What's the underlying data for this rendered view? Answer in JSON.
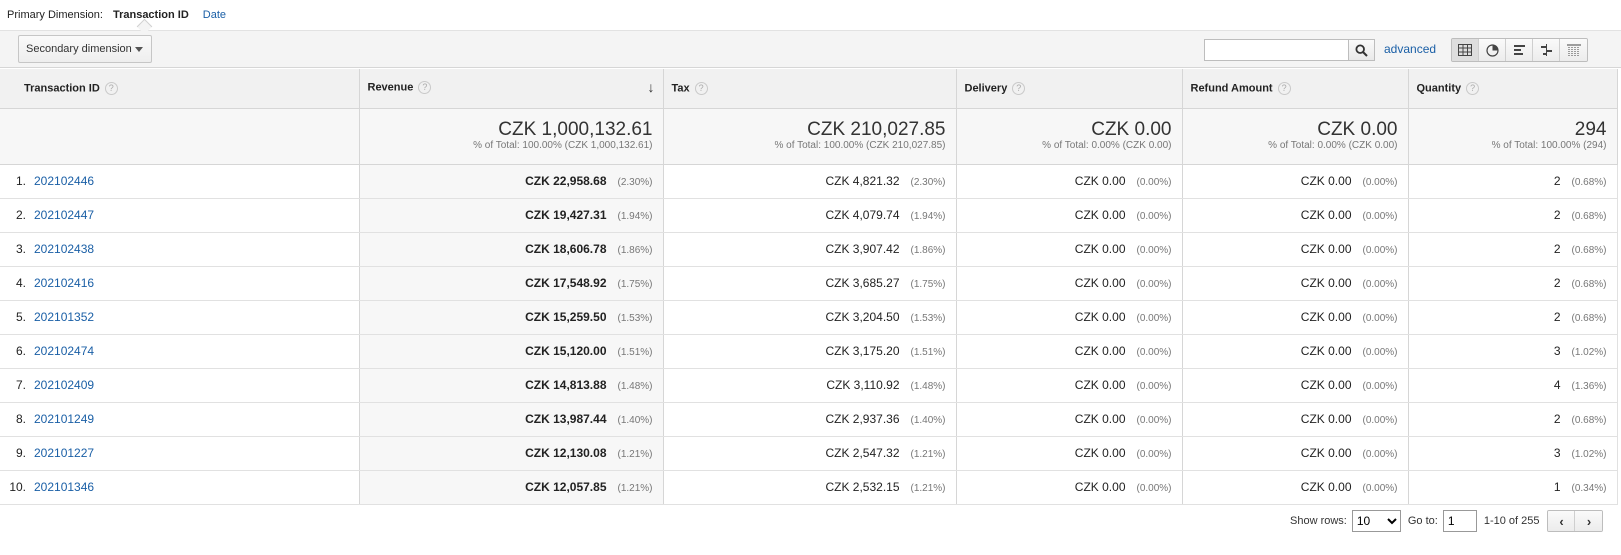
{
  "primary_dimension": {
    "label": "Primary Dimension:",
    "active": "Transaction ID",
    "other": "Date"
  },
  "toolbar": {
    "secondary_dimension_label": "Secondary dimension",
    "search_value": "",
    "advanced_label": "advanced",
    "view_icons": [
      "table-view-icon",
      "pie-view-icon",
      "bar-view-icon",
      "comparison-view-icon",
      "pivot-view-icon"
    ]
  },
  "table": {
    "headers": {
      "dimension": "Transaction ID",
      "revenue": "Revenue",
      "tax": "Tax",
      "delivery": "Delivery",
      "refund": "Refund Amount",
      "quantity": "Quantity"
    },
    "help_glyph": "?",
    "sort_glyph": "↓",
    "totals": {
      "revenue": {
        "value": "CZK 1,000,132.61",
        "sub": "% of Total: 100.00% (CZK 1,000,132.61)"
      },
      "tax": {
        "value": "CZK 210,027.85",
        "sub": "% of Total: 100.00% (CZK 210,027.85)"
      },
      "delivery": {
        "value": "CZK 0.00",
        "sub": "% of Total: 0.00% (CZK 0.00)"
      },
      "refund": {
        "value": "CZK 0.00",
        "sub": "% of Total: 0.00% (CZK 0.00)"
      },
      "quantity": {
        "value": "294",
        "sub": "% of Total: 100.00% (294)"
      }
    },
    "rows": [
      {
        "idx": "1.",
        "id": "202102446",
        "revenue": "CZK 22,958.68",
        "revenue_pct": "(2.30%)",
        "tax": "CZK 4,821.32",
        "tax_pct": "(2.30%)",
        "delivery": "CZK 0.00",
        "delivery_pct": "(0.00%)",
        "refund": "CZK 0.00",
        "refund_pct": "(0.00%)",
        "quantity": "2",
        "quantity_pct": "(0.68%)"
      },
      {
        "idx": "2.",
        "id": "202102447",
        "revenue": "CZK 19,427.31",
        "revenue_pct": "(1.94%)",
        "tax": "CZK 4,079.74",
        "tax_pct": "(1.94%)",
        "delivery": "CZK 0.00",
        "delivery_pct": "(0.00%)",
        "refund": "CZK 0.00",
        "refund_pct": "(0.00%)",
        "quantity": "2",
        "quantity_pct": "(0.68%)"
      },
      {
        "idx": "3.",
        "id": "202102438",
        "revenue": "CZK 18,606.78",
        "revenue_pct": "(1.86%)",
        "tax": "CZK 3,907.42",
        "tax_pct": "(1.86%)",
        "delivery": "CZK 0.00",
        "delivery_pct": "(0.00%)",
        "refund": "CZK 0.00",
        "refund_pct": "(0.00%)",
        "quantity": "2",
        "quantity_pct": "(0.68%)"
      },
      {
        "idx": "4.",
        "id": "202102416",
        "revenue": "CZK 17,548.92",
        "revenue_pct": "(1.75%)",
        "tax": "CZK 3,685.27",
        "tax_pct": "(1.75%)",
        "delivery": "CZK 0.00",
        "delivery_pct": "(0.00%)",
        "refund": "CZK 0.00",
        "refund_pct": "(0.00%)",
        "quantity": "2",
        "quantity_pct": "(0.68%)"
      },
      {
        "idx": "5.",
        "id": "202101352",
        "revenue": "CZK 15,259.50",
        "revenue_pct": "(1.53%)",
        "tax": "CZK 3,204.50",
        "tax_pct": "(1.53%)",
        "delivery": "CZK 0.00",
        "delivery_pct": "(0.00%)",
        "refund": "CZK 0.00",
        "refund_pct": "(0.00%)",
        "quantity": "2",
        "quantity_pct": "(0.68%)"
      },
      {
        "idx": "6.",
        "id": "202102474",
        "revenue": "CZK 15,120.00",
        "revenue_pct": "(1.51%)",
        "tax": "CZK 3,175.20",
        "tax_pct": "(1.51%)",
        "delivery": "CZK 0.00",
        "delivery_pct": "(0.00%)",
        "refund": "CZK 0.00",
        "refund_pct": "(0.00%)",
        "quantity": "3",
        "quantity_pct": "(1.02%)"
      },
      {
        "idx": "7.",
        "id": "202102409",
        "revenue": "CZK 14,813.88",
        "revenue_pct": "(1.48%)",
        "tax": "CZK 3,110.92",
        "tax_pct": "(1.48%)",
        "delivery": "CZK 0.00",
        "delivery_pct": "(0.00%)",
        "refund": "CZK 0.00",
        "refund_pct": "(0.00%)",
        "quantity": "4",
        "quantity_pct": "(1.36%)"
      },
      {
        "idx": "8.",
        "id": "202101249",
        "revenue": "CZK 13,987.44",
        "revenue_pct": "(1.40%)",
        "tax": "CZK 2,937.36",
        "tax_pct": "(1.40%)",
        "delivery": "CZK 0.00",
        "delivery_pct": "(0.00%)",
        "refund": "CZK 0.00",
        "refund_pct": "(0.00%)",
        "quantity": "2",
        "quantity_pct": "(0.68%)"
      },
      {
        "idx": "9.",
        "id": "202101227",
        "revenue": "CZK 12,130.08",
        "revenue_pct": "(1.21%)",
        "tax": "CZK 2,547.32",
        "tax_pct": "(1.21%)",
        "delivery": "CZK 0.00",
        "delivery_pct": "(0.00%)",
        "refund": "CZK 0.00",
        "refund_pct": "(0.00%)",
        "quantity": "3",
        "quantity_pct": "(1.02%)"
      },
      {
        "idx": "10.",
        "id": "202101346",
        "revenue": "CZK 12,057.85",
        "revenue_pct": "(1.21%)",
        "tax": "CZK 2,532.15",
        "tax_pct": "(1.21%)",
        "delivery": "CZK 0.00",
        "delivery_pct": "(0.00%)",
        "refund": "CZK 0.00",
        "refund_pct": "(0.00%)",
        "quantity": "1",
        "quantity_pct": "(0.34%)"
      }
    ]
  },
  "pagination": {
    "show_rows_label": "Show rows:",
    "show_rows_value": "10",
    "goto_label": "Go to:",
    "goto_value": "1",
    "range": "1-10 of 255",
    "prev_glyph": "‹",
    "next_glyph": "›"
  },
  "colors": {
    "link": "#1a5fa6",
    "header_bg": "#f1f1f1",
    "toolbar_bg": "#f4f4f4"
  }
}
